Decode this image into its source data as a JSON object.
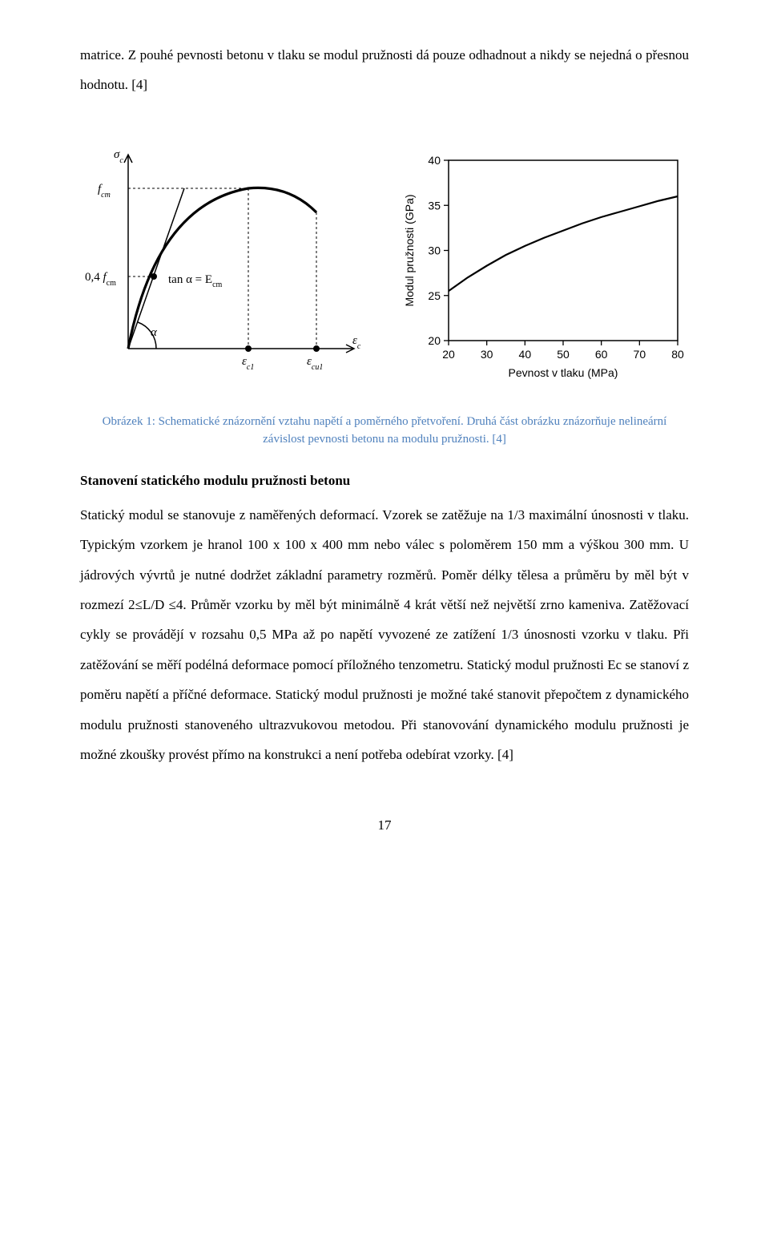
{
  "intro_paragraph": "matrice. Z pouhé pevnosti betonu v tlaku se modul pružnosti dá pouze odhadnout a nikdy se nejedná o přesnou hodnotu. [4]",
  "figure": {
    "left_diagram": {
      "type": "diagram",
      "y_axis_top": "σ",
      "y_axis_top_sub": "c",
      "y_tick_1": "f",
      "y_tick_1_sub": "cm",
      "y_tick_2_prefix": "0,4 ",
      "y_tick_2": "f",
      "y_tick_2_sub": "cm",
      "tan_label": "tan α  =  E",
      "tan_label_sub": "cm",
      "alpha_label": "α",
      "x_tick_1": "ε",
      "x_tick_1_sub": "c1",
      "x_tick_2": "ε",
      "x_tick_2_sub": "cu1",
      "x_axis_right": "ε",
      "x_axis_right_sub": "c",
      "line_color": "#000000",
      "bg_color": "#ffffff"
    },
    "right_chart": {
      "type": "line",
      "x_label": "Pevnost v tlaku (MPa)",
      "y_label": "Modul pružnosti (GPa)",
      "x_ticks": [
        20,
        30,
        40,
        50,
        60,
        70,
        80
      ],
      "y_ticks": [
        20,
        25,
        30,
        35,
        40
      ],
      "xlim": [
        20,
        80
      ],
      "ylim": [
        20,
        40
      ],
      "series_x": [
        20,
        25,
        30,
        35,
        40,
        45,
        50,
        55,
        60,
        65,
        70,
        75,
        80
      ],
      "series_y": [
        25.5,
        27.0,
        28.3,
        29.5,
        30.5,
        31.4,
        32.2,
        33.0,
        33.7,
        34.3,
        34.9,
        35.5,
        36.0
      ],
      "line_color": "#000000",
      "line_width": 2.2,
      "axis_color": "#000000",
      "bg_color": "#ffffff",
      "tick_font_family": "Arial",
      "tick_fontsize": 14,
      "label_fontsize": 14
    },
    "caption": "Obrázek 1: Schematické znázornění vztahu napětí a poměrného přetvoření. Druhá část obrázku znázorňuje nelineární závislost pevnosti betonu na modulu pružnosti. [4]"
  },
  "heading": "Stanovení statického modulu pružnosti betonu",
  "main_paragraph": "Statický modul se stanovuje z naměřených deformací. Vzorek se zatěžuje na 1/3 maximální únosnosti v tlaku. Typickým vzorkem je hranol 100 x 100 x 400 mm nebo válec s poloměrem 150 mm a výškou 300 mm. U jádrových vývrtů je nutné dodržet základní parametry rozměrů. Poměr délky tělesa a průměru by měl být v rozmezí 2≤L/D ≤4. Průměr vzorku by měl být minimálně 4 krát větší než největší zrno kameniva. Zatěžovací cykly se provádějí v rozsahu 0,5 MPa až po napětí vyvozené ze zatížení 1/3 únosnosti vzorku v tlaku. Při zatěžování se měří podélná deformace pomocí příložného tenzometru. Statický modul pružnosti Ec se stanoví z poměru napětí a příčné deformace. Statický modul pružnosti je možné také stanovit přepočtem z dynamického modulu pružnosti stanoveného ultrazvukovou metodou. Při stanovování dynamického modulu pružnosti je možné zkoušky provést přímo na konstrukci a není potřeba odebírat vzorky. [4]",
  "page_number": "17"
}
